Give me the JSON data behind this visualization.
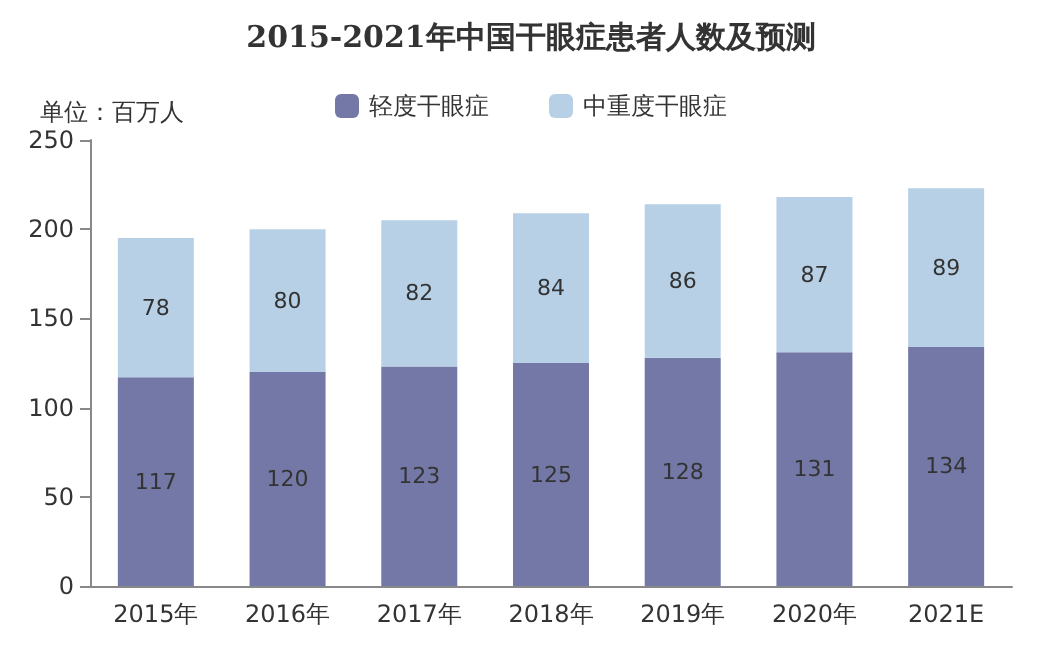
{
  "chart_data": {
    "type": "bar",
    "title": "2015-2021年中国干眼症患者人数及预测",
    "annotations": [
      "单位：百万人"
    ],
    "categories": [
      "2015年",
      "2016年",
      "2017年",
      "2018年",
      "2019年",
      "2020年",
      "2021E"
    ],
    "series": [
      {
        "name": "轻度干眼症",
        "color": "#7378a6",
        "values": [
          117,
          120,
          123,
          125,
          128,
          131,
          134
        ]
      },
      {
        "name": "中重度干眼症",
        "color": "#b7d0e6",
        "values": [
          78,
          80,
          82,
          84,
          86,
          87,
          89
        ]
      }
    ],
    "stacked": true,
    "data_labels": true,
    "legend": "top",
    "grid": false,
    "ylim": [
      0,
      250
    ],
    "yticks": [
      0,
      50,
      100,
      150,
      200,
      250
    ]
  }
}
